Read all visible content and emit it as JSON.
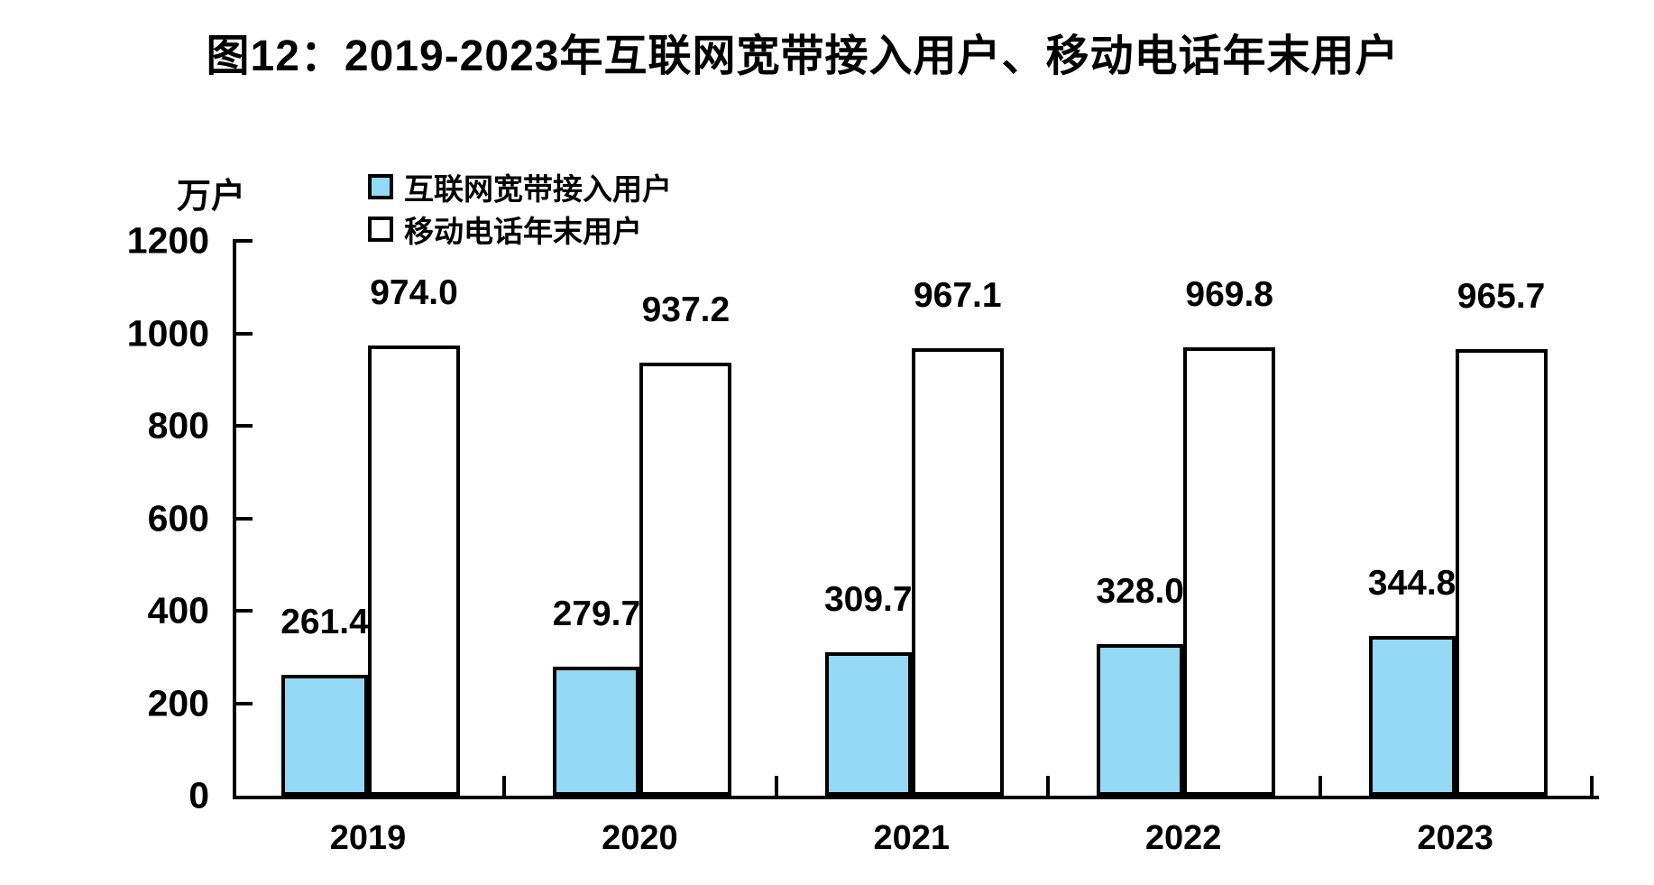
{
  "title": "图12：2019-2023年互联网宽带接入用户、移动电话年末用户",
  "chart_data": {
    "type": "bar",
    "title": "图12：2019-2023年互联网宽带接入用户、移动电话年末用户",
    "unit_label": "万户",
    "xlabel": "",
    "ylabel": "万户",
    "categories": [
      "2019",
      "2020",
      "2021",
      "2022",
      "2023"
    ],
    "series": [
      {
        "name": "互联网宽带接入用户",
        "color": "#94D9F6",
        "values": [
          261.4,
          279.7,
          309.7,
          328.0,
          344.8
        ]
      },
      {
        "name": "移动电话年末用户",
        "color": "#FFFFFF",
        "values": [
          974.0,
          937.2,
          967.1,
          969.8,
          965.7
        ]
      }
    ],
    "ylim": [
      0,
      1200
    ],
    "yticks": [
      0,
      200,
      400,
      600,
      800,
      1000,
      1200
    ],
    "grid": false,
    "data_labels": true,
    "data_label_decimals": 1,
    "legend_position": "top-left-inside",
    "axis_color": "#000000",
    "background_color": "#FFFFFF",
    "text_color": "#000000"
  }
}
